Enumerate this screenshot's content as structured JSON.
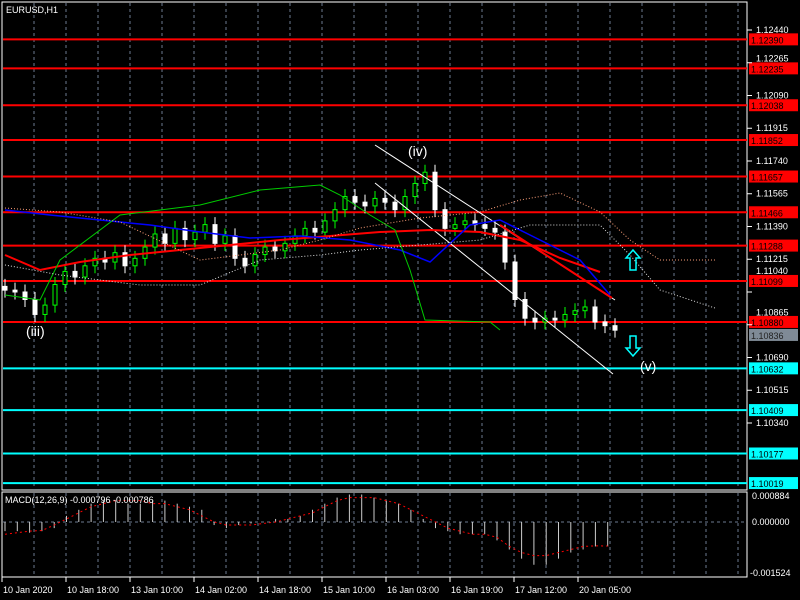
{
  "window": {
    "title": "EURUSD,H1"
  },
  "colors": {
    "background": "#000000",
    "bull": "#00ff00",
    "bear": "#ffffff",
    "resistance": "#ff0000",
    "support": "#00ffff",
    "ma": "#ff0000",
    "grid": "#6b7a8f"
  },
  "price_axis": {
    "ticks": [
      "1.12440",
      "1.12265",
      "1.12090",
      "1.11915",
      "1.11740",
      "1.11565",
      "1.11390",
      "1.11215",
      "1.11040",
      "1.10865",
      "1.10690",
      "1.10515",
      "1.10340"
    ],
    "current_price": "1.10836"
  },
  "levels": {
    "resistance": [
      "1.12390",
      "1.12235",
      "1.12038",
      "1.11852",
      "1.11657",
      "1.11466",
      "1.11288",
      "1.11099",
      "1.10880"
    ],
    "support": [
      "1.10632",
      "1.10409",
      "1.10177",
      "1.10019"
    ]
  },
  "annotations": {
    "wave_iii": "(iii)",
    "wave_iv": "(iv)",
    "wave_v": "(v)"
  },
  "macd": {
    "label": "MACD(12,26,9) -0.000796 -0.000786",
    "axis_top": "0.000884",
    "axis_zero": "0.000000",
    "axis_bottom": "-0.001524"
  },
  "time_axis": [
    "10 Jan 2020",
    "10 Jan 18:00",
    "13 Jan 10:00",
    "14 Jan 02:00",
    "14 Jan 18:00",
    "15 Jan 10:00",
    "16 Jan 03:00",
    "16 Jan 19:00",
    "17 Jan 12:00",
    "20 Jan 05:00"
  ],
  "chart_data": {
    "type": "candlestick",
    "symbol": "EURUSD",
    "timeframe": "H1",
    "ylim": [
      1.1,
      1.125
    ],
    "closes": [
      1.1105,
      1.1104,
      1.11,
      1.1092,
      1.1097,
      1.1108,
      1.1115,
      1.1112,
      1.1118,
      1.1122,
      1.112,
      1.1125,
      1.1118,
      1.1122,
      1.1128,
      1.1135,
      1.113,
      1.1138,
      1.1132,
      1.1136,
      1.114,
      1.113,
      1.1134,
      1.1122,
      1.1118,
      1.1124,
      1.1128,
      1.1126,
      1.113,
      1.1134,
      1.1138,
      1.1136,
      1.1142,
      1.1148,
      1.1155,
      1.1152,
      1.115,
      1.1154,
      1.1152,
      1.1148,
      1.1155,
      1.1162,
      1.1168,
      1.1148,
      1.1138,
      1.114,
      1.1142,
      1.114,
      1.1138,
      1.1136,
      1.112,
      1.11,
      1.109,
      1.1088,
      1.109,
      1.1089,
      1.1092,
      1.1094,
      1.1096,
      1.1088,
      1.1086,
      1.10836
    ],
    "macd_hist": [
      -0.0003,
      -0.0003,
      -0.00035,
      -0.0003,
      -0.0002,
      0.0002,
      0.0004,
      0.0006,
      0.0007,
      0.0007,
      0.0006,
      0.0006,
      0.0007,
      0.0007,
      0.0006,
      0.0005,
      0.0004,
      -0.0001,
      -0.0002,
      -0.0001,
      -5e-05,
      0.0,
      0.0001,
      0.0001,
      0.0002,
      0.0004,
      0.0006,
      0.0008,
      0.0009,
      0.0009,
      0.0008,
      0.0007,
      0.0006,
      0.0004,
      0.0001,
      -0.0002,
      -0.0003,
      -0.0004,
      -0.0004,
      -0.0004,
      -0.0006,
      -0.0009,
      -0.0012,
      -0.0014,
      -0.0014,
      -0.0012,
      -0.001,
      -0.0009,
      -0.0008,
      -0.0008
    ],
    "macd_signal": [
      -0.0004,
      -0.00035,
      -0.0003,
      -0.00028,
      -0.0001,
      0.0001,
      0.0003,
      0.0005,
      0.0006,
      0.0007,
      0.0007,
      0.0007,
      0.0006,
      0.0006,
      0.0005,
      0.0004,
      0.0002,
      0.0,
      -0.0001,
      -0.0001,
      -0.0001,
      -5e-05,
      0.0,
      0.0001,
      0.0002,
      0.0003,
      0.0005,
      0.0007,
      0.0008,
      0.0008,
      0.0008,
      0.0007,
      0.0006,
      0.0004,
      0.0002,
      0.0,
      -0.0002,
      -0.0003,
      -0.0004,
      -0.0004,
      -0.0005,
      -0.0008,
      -0.001,
      -0.0011,
      -0.0011,
      -0.001,
      -0.0009,
      -0.0008,
      -0.00078,
      -0.000786
    ]
  }
}
